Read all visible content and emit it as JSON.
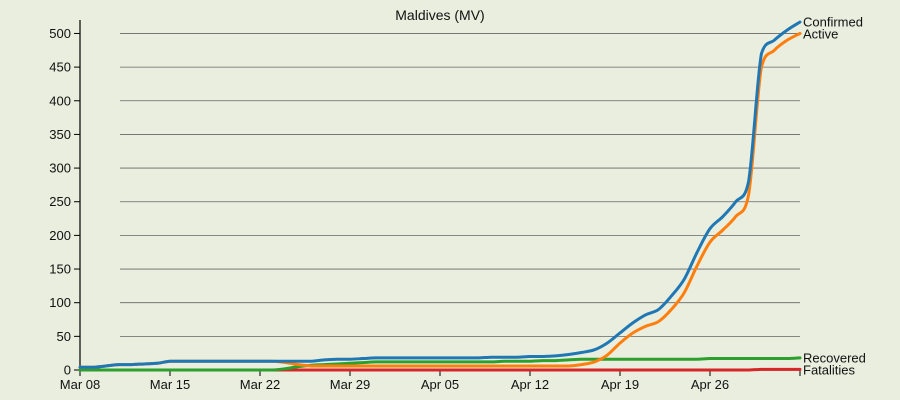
{
  "chart_data": {
    "type": "line",
    "title": "Maldives (MV)",
    "xlabel": "",
    "ylabel": "",
    "ylim": [
      0,
      520
    ],
    "yticks": [
      0,
      50,
      100,
      150,
      200,
      250,
      300,
      350,
      400,
      450,
      500
    ],
    "x_tick_labels": [
      "Mar 08",
      "Mar 15",
      "Mar 22",
      "Mar 29",
      "Apr 05",
      "Apr 12",
      "Apr 19",
      "Apr 26"
    ],
    "x": [
      "Mar 08",
      "Mar 09",
      "Mar 10",
      "Mar 11",
      "Mar 12",
      "Mar 13",
      "Mar 14",
      "Mar 15",
      "Mar 16",
      "Mar 17",
      "Mar 18",
      "Mar 19",
      "Mar 20",
      "Mar 21",
      "Mar 22",
      "Mar 23",
      "Mar 24",
      "Mar 25",
      "Mar 26",
      "Mar 27",
      "Mar 28",
      "Mar 29",
      "Mar 30",
      "Mar 31",
      "Apr 01",
      "Apr 02",
      "Apr 03",
      "Apr 04",
      "Apr 05",
      "Apr 06",
      "Apr 07",
      "Apr 08",
      "Apr 09",
      "Apr 10",
      "Apr 11",
      "Apr 12",
      "Apr 13",
      "Apr 14",
      "Apr 15",
      "Apr 16",
      "Apr 17",
      "Apr 18",
      "Apr 19",
      "Apr 20",
      "Apr 21",
      "Apr 22",
      "Apr 23",
      "Apr 24",
      "Apr 25",
      "Apr 26",
      "Apr 27",
      "Apr 28",
      "Apr 29",
      "Apr 30",
      "May 01",
      "May 02",
      "May 03"
    ],
    "grid": "horizontal",
    "series": [
      {
        "name": "Confirmed",
        "color": "#1f77b4",
        "values": [
          4,
          4,
          6,
          8,
          8,
          9,
          10,
          13,
          13,
          13,
          13,
          13,
          13,
          13,
          13,
          13,
          13,
          13,
          13,
          15,
          16,
          16,
          17,
          18,
          18,
          18,
          18,
          18,
          18,
          18,
          18,
          18,
          19,
          19,
          19,
          20,
          20,
          21,
          23,
          26,
          30,
          40,
          55,
          70,
          82,
          90,
          110,
          135,
          175,
          210,
          228,
          250,
          280,
          470,
          490,
          505,
          517
        ]
      },
      {
        "name": "Active",
        "color": "#ff7f0e",
        "values": [
          4,
          4,
          6,
          8,
          8,
          9,
          10,
          13,
          13,
          13,
          13,
          13,
          13,
          13,
          13,
          13,
          11,
          8,
          6,
          6,
          6,
          6,
          6,
          6,
          6,
          6,
          6,
          6,
          6,
          6,
          6,
          6,
          6,
          6,
          6,
          6,
          6,
          6,
          6,
          8,
          12,
          22,
          40,
          55,
          65,
          72,
          90,
          115,
          155,
          190,
          208,
          228,
          260,
          450,
          475,
          490,
          500
        ]
      },
      {
        "name": "Recovered",
        "color": "#2ca02c",
        "values": [
          0,
          0,
          0,
          0,
          0,
          0,
          0,
          0,
          0,
          0,
          0,
          0,
          0,
          0,
          0,
          0,
          2,
          5,
          7,
          8,
          9,
          10,
          11,
          12,
          12,
          12,
          12,
          12,
          12,
          12,
          12,
          12,
          12,
          13,
          13,
          13,
          14,
          14,
          15,
          16,
          16,
          16,
          16,
          16,
          16,
          16,
          16,
          16,
          16,
          17,
          17,
          17,
          17,
          17,
          17,
          17,
          18
        ]
      },
      {
        "name": "Fatalities",
        "color": "#d62728",
        "values": [
          0,
          0,
          0,
          0,
          0,
          0,
          0,
          0,
          0,
          0,
          0,
          0,
          0,
          0,
          0,
          0,
          0,
          0,
          0,
          0,
          0,
          0,
          0,
          0,
          0,
          0,
          0,
          0,
          0,
          0,
          0,
          0,
          0,
          0,
          0,
          0,
          0,
          0,
          0,
          0,
          0,
          0,
          0,
          0,
          0,
          0,
          0,
          0,
          0,
          0,
          0,
          0,
          0,
          1,
          1,
          1,
          1
        ]
      }
    ]
  }
}
